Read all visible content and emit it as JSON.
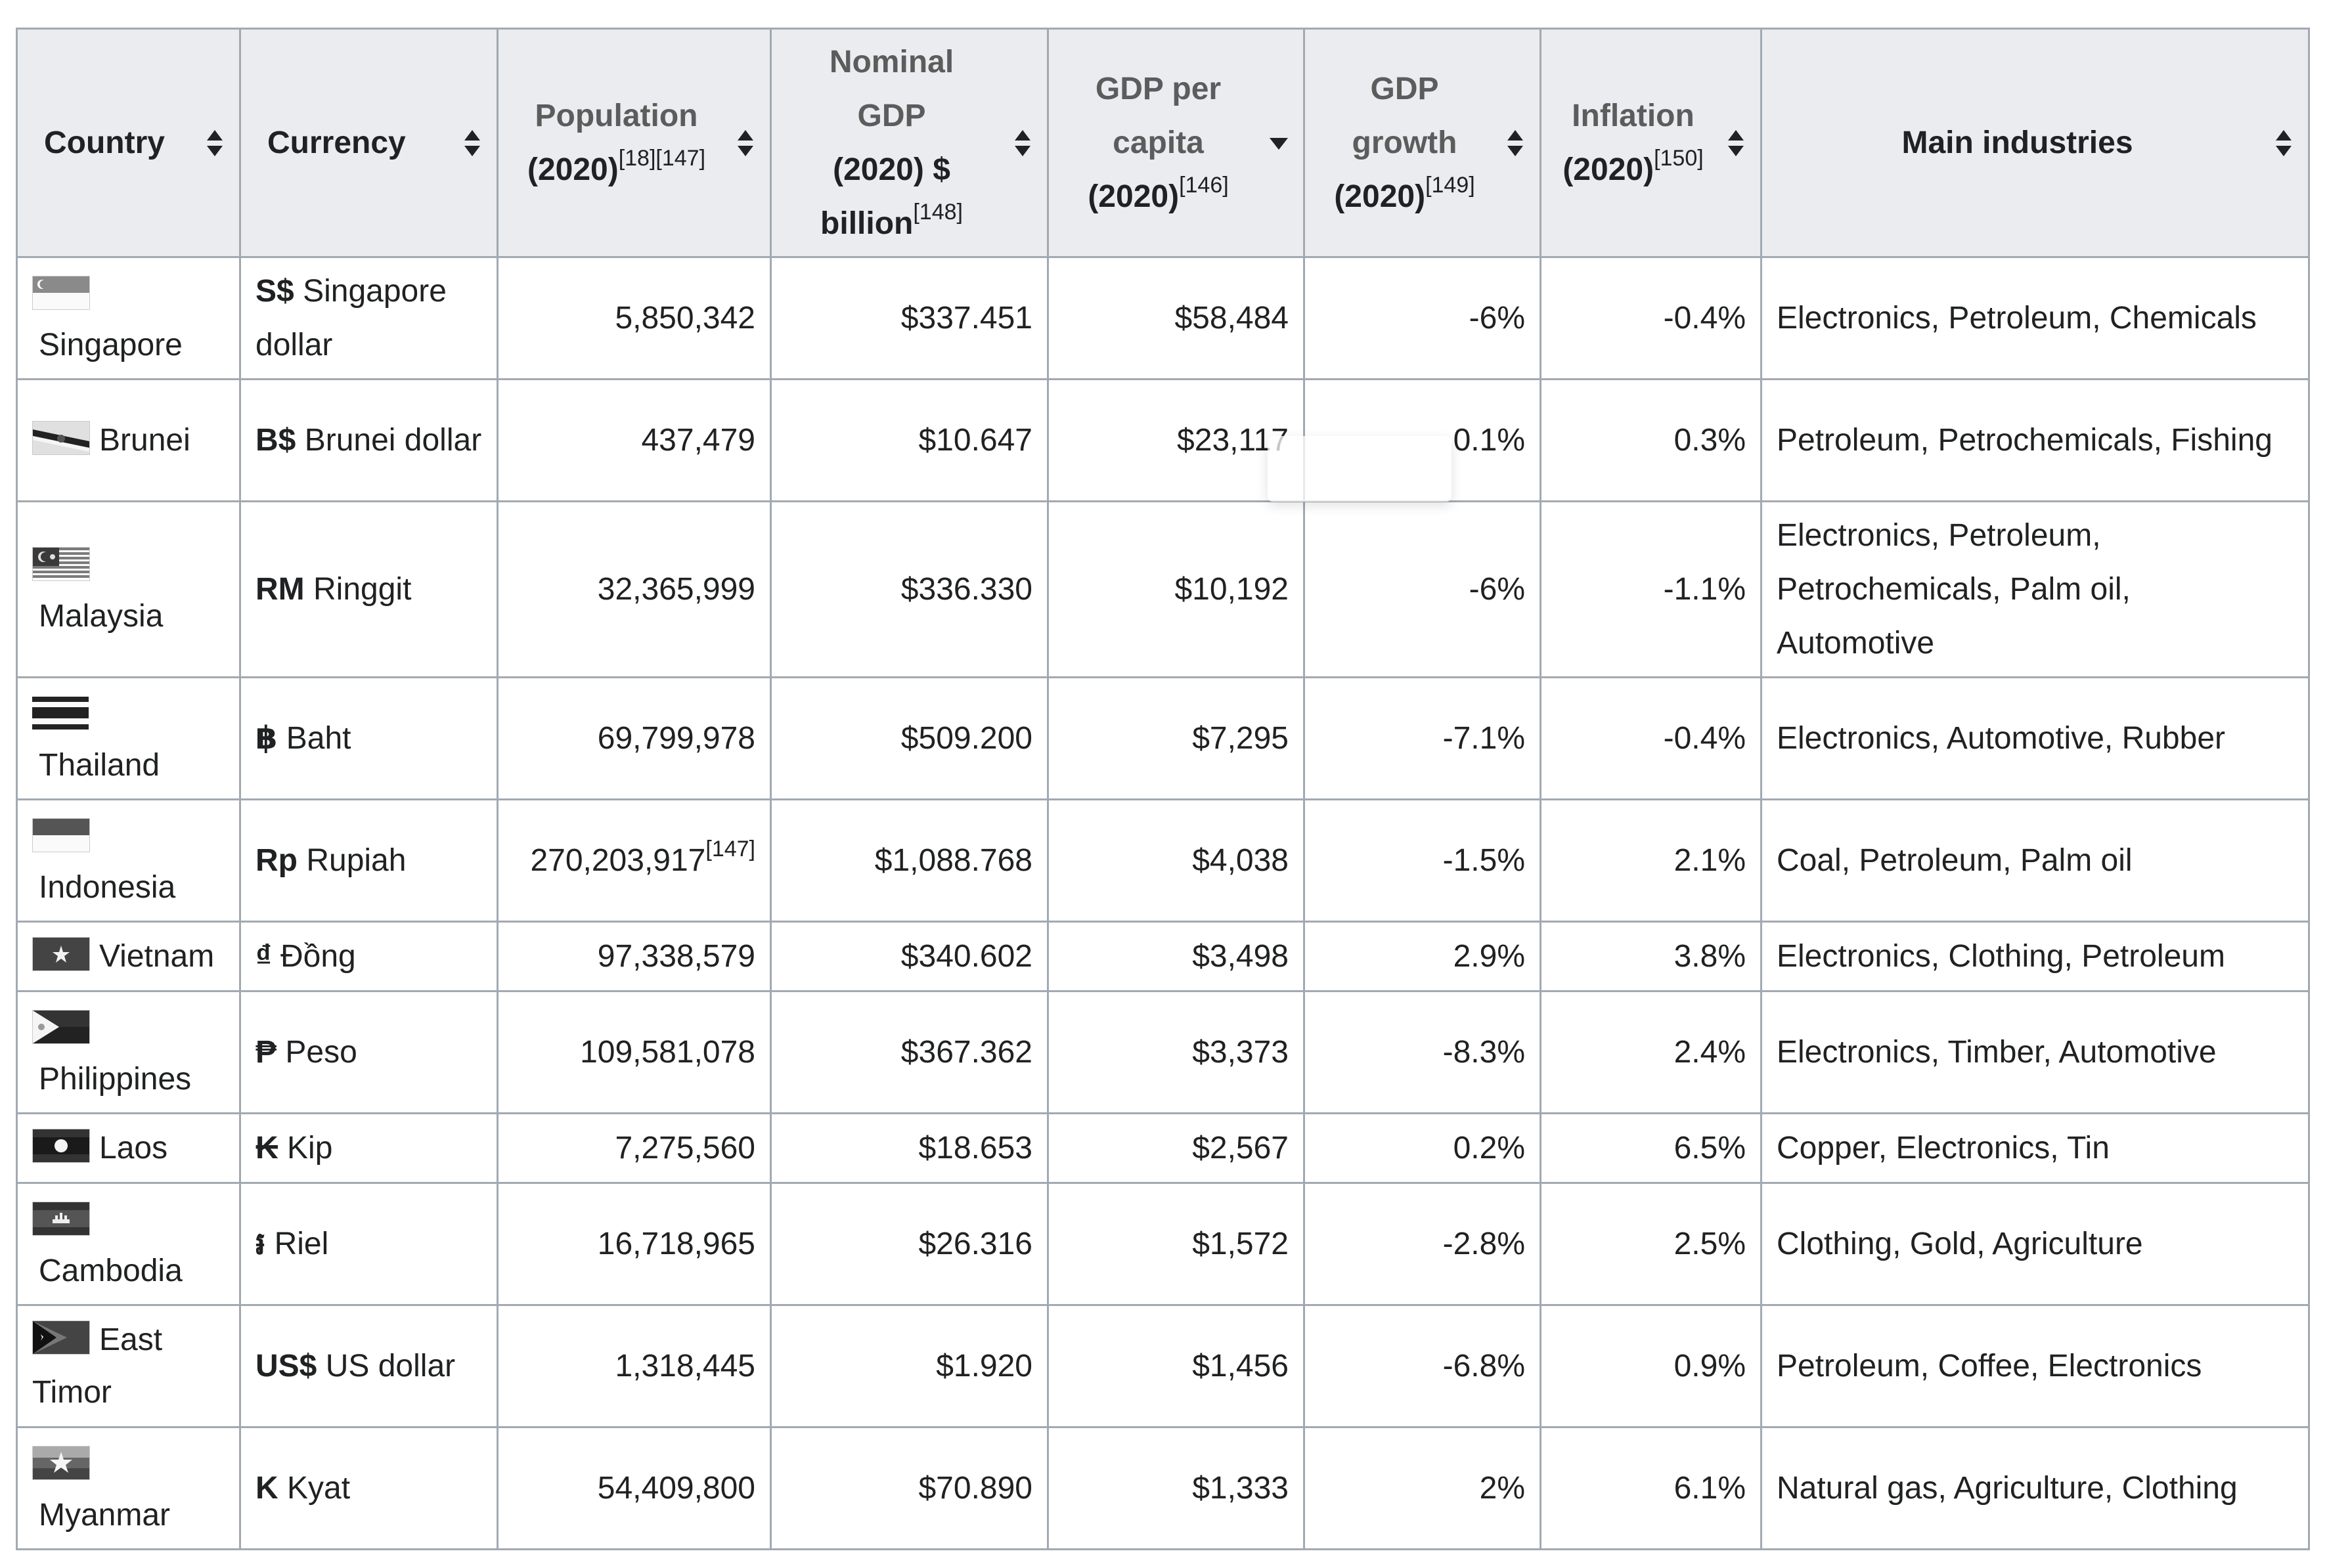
{
  "table": {
    "headers": [
      {
        "id": "country",
        "label": "Country",
        "refs": "",
        "sort_icon": "sort-both-icon"
      },
      {
        "id": "currency",
        "label": "Currency",
        "refs": "",
        "sort_icon": "sort-both-icon"
      },
      {
        "id": "population",
        "label": "Population (2020)",
        "refs": "[18][147]",
        "sort_icon": "sort-both-icon"
      },
      {
        "id": "nominal_gdp",
        "label": "Nominal GDP (2020) $ billion",
        "refs": "[148]",
        "sort_icon": "sort-both-icon"
      },
      {
        "id": "gdp_per_capita",
        "label": "GDP per capita (2020)",
        "refs": "[146]",
        "sort_icon": "sort-descending-icon"
      },
      {
        "id": "gdp_growth",
        "label": "GDP growth (2020)",
        "refs": "[149]",
        "sort_icon": "sort-both-icon"
      },
      {
        "id": "inflation",
        "label": "Inflation (2020)",
        "refs": "[150]",
        "sort_icon": "sort-both-icon"
      },
      {
        "id": "industries",
        "label": "Main industries",
        "refs": "",
        "sort_icon": "sort-both-icon"
      }
    ],
    "header_lines": {
      "country": [
        "Country"
      ],
      "currency": [
        "Currency"
      ],
      "population": [
        "Population",
        "(2020)"
      ],
      "nominal_gdp": [
        "Nominal",
        "GDP",
        "(2020) $",
        "billion"
      ],
      "gdp_per_capita": [
        "GDP per",
        "capita",
        "(2020)"
      ],
      "gdp_growth": [
        "GDP",
        "growth",
        "(2020)"
      ],
      "inflation": [
        "Inflation",
        "(2020)"
      ],
      "industries": [
        "Main industries"
      ]
    },
    "rows": [
      {
        "country": "Singapore",
        "flag_icon": "singapore-flag-icon",
        "currency_symbol": "S$",
        "currency_name": "Singapore dollar",
        "population": "5,850,342",
        "population_ref": "",
        "gdp": "$337.451",
        "gdp_per_capita": "$58,484",
        "gdp_growth": "-6%",
        "inflation": "-0.4%",
        "industries": "Electronics, Petroleum, Chemicals"
      },
      {
        "country": "Brunei",
        "flag_icon": "brunei-flag-icon",
        "currency_symbol": "B$",
        "currency_name": "Brunei dollar",
        "population": "437,479",
        "population_ref": "",
        "gdp": "$10.647",
        "gdp_per_capita": "$23,117",
        "gdp_growth": "0.1%",
        "inflation": "0.3%",
        "industries": "Petroleum, Petrochemicals, Fishing"
      },
      {
        "country": "Malaysia",
        "flag_icon": "malaysia-flag-icon",
        "currency_symbol": "RM",
        "currency_name": "Ringgit",
        "population": "32,365,999",
        "population_ref": "",
        "gdp": "$336.330",
        "gdp_per_capita": "$10,192",
        "gdp_growth": "-6%",
        "inflation": "-1.1%",
        "industries": "Electronics, Petroleum, Petrochemicals, Palm oil, Automotive"
      },
      {
        "country": "Thailand",
        "flag_icon": "thailand-flag-icon",
        "currency_symbol": "฿",
        "currency_name": "Baht",
        "population": "69,799,978",
        "population_ref": "",
        "gdp": "$509.200",
        "gdp_per_capita": "$7,295",
        "gdp_growth": "-7.1%",
        "inflation": "-0.4%",
        "industries": "Electronics, Automotive, Rubber"
      },
      {
        "country": "Indonesia",
        "flag_icon": "indonesia-flag-icon",
        "currency_symbol": "Rp",
        "currency_name": "Rupiah",
        "population": "270,203,917",
        "population_ref": "[147]",
        "gdp": "$1,088.768",
        "gdp_per_capita": "$4,038",
        "gdp_growth": "-1.5%",
        "inflation": "2.1%",
        "industries": "Coal, Petroleum, Palm oil"
      },
      {
        "country": "Vietnam",
        "flag_icon": "vietnam-flag-icon",
        "currency_symbol": "₫",
        "currency_name": "Đồng",
        "population": "97,338,579",
        "population_ref": "",
        "gdp": "$340.602",
        "gdp_per_capita": "$3,498",
        "gdp_growth": "2.9%",
        "inflation": "3.8%",
        "industries": "Electronics, Clothing, Petroleum"
      },
      {
        "country": "Philippines",
        "flag_icon": "philippines-flag-icon",
        "currency_symbol": "₱",
        "currency_name": "Peso",
        "population": "109,581,078",
        "population_ref": "",
        "gdp": "$367.362",
        "gdp_per_capita": "$3,373",
        "gdp_growth": "-8.3%",
        "inflation": "2.4%",
        "industries": "Electronics, Timber, Automotive"
      },
      {
        "country": "Laos",
        "flag_icon": "laos-flag-icon",
        "currency_symbol": "₭",
        "currency_name": "Kip",
        "population": "7,275,560",
        "population_ref": "",
        "gdp": "$18.653",
        "gdp_per_capita": "$2,567",
        "gdp_growth": "0.2%",
        "inflation": "6.5%",
        "industries": "Copper, Electronics, Tin"
      },
      {
        "country": "Cambodia",
        "flag_icon": "cambodia-flag-icon",
        "currency_symbol": "៛",
        "currency_name": "Riel",
        "population": "16,718,965",
        "population_ref": "",
        "gdp": "$26.316",
        "gdp_per_capita": "$1,572",
        "gdp_growth": "-2.8%",
        "inflation": "2.5%",
        "industries": "Clothing, Gold, Agriculture"
      },
      {
        "country": "East Timor",
        "flag_icon": "east-timor-flag-icon",
        "currency_symbol": "US$",
        "currency_name": "US dollar",
        "population": "1,318,445",
        "population_ref": "",
        "gdp": "$1.920",
        "gdp_per_capita": "$1,456",
        "gdp_growth": "-6.8%",
        "inflation": "0.9%",
        "industries": "Petroleum, Coffee, Electronics"
      },
      {
        "country": "Myanmar",
        "flag_icon": "myanmar-flag-icon",
        "currency_symbol": "K",
        "currency_name": "Kyat",
        "population": "54,409,800",
        "population_ref": "",
        "gdp": "$70.890",
        "gdp_per_capita": "$1,333",
        "gdp_growth": "2%",
        "inflation": "6.1%",
        "industries": "Natural gas, Agriculture, Clothing"
      }
    ]
  }
}
